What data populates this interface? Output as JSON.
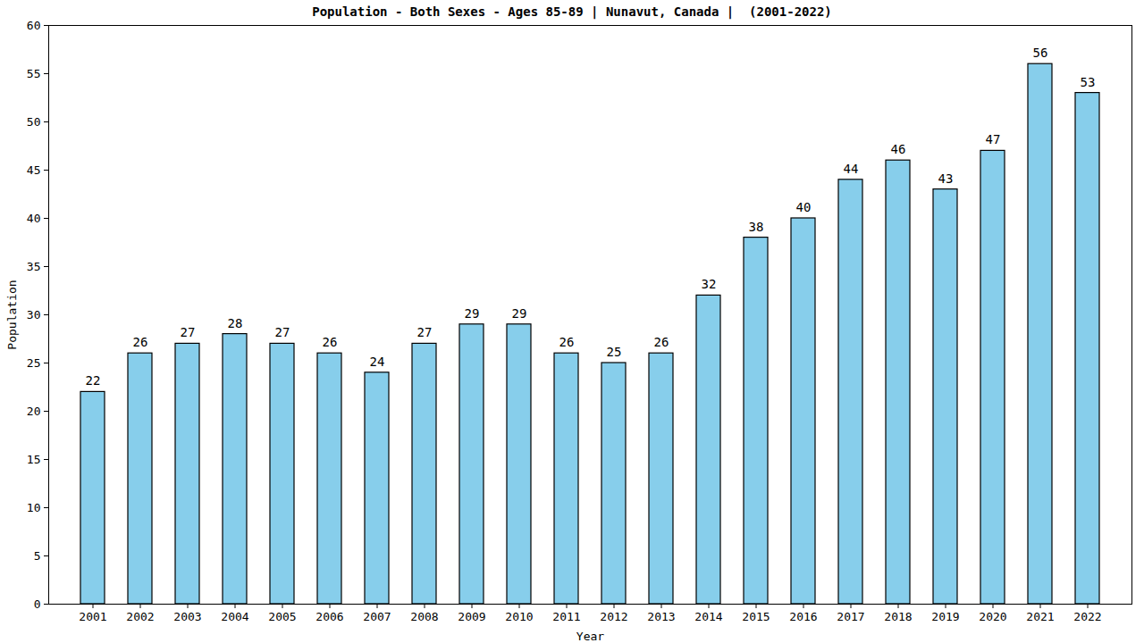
{
  "chart_data": {
    "type": "bar",
    "title": "Population - Both Sexes - Ages 85-89 | Nunavut, Canada |  (2001-2022)",
    "x_label": "Year",
    "y_label": "Population",
    "categories": [
      "2001",
      "2002",
      "2003",
      "2004",
      "2005",
      "2006",
      "2007",
      "2008",
      "2009",
      "2010",
      "2011",
      "2012",
      "2013",
      "2014",
      "2015",
      "2016",
      "2017",
      "2018",
      "2019",
      "2020",
      "2021",
      "2022"
    ],
    "values": [
      22,
      26,
      27,
      28,
      27,
      26,
      24,
      27,
      29,
      29,
      26,
      25,
      26,
      32,
      38,
      40,
      44,
      46,
      43,
      47,
      56,
      53
    ],
    "color": "#87ceeb",
    "ylim": [
      0,
      60
    ],
    "yticks": [
      0,
      5,
      10,
      15,
      20,
      25,
      30,
      35,
      40,
      45,
      50,
      55,
      60
    ],
    "data_labels": true,
    "grid": false
  }
}
